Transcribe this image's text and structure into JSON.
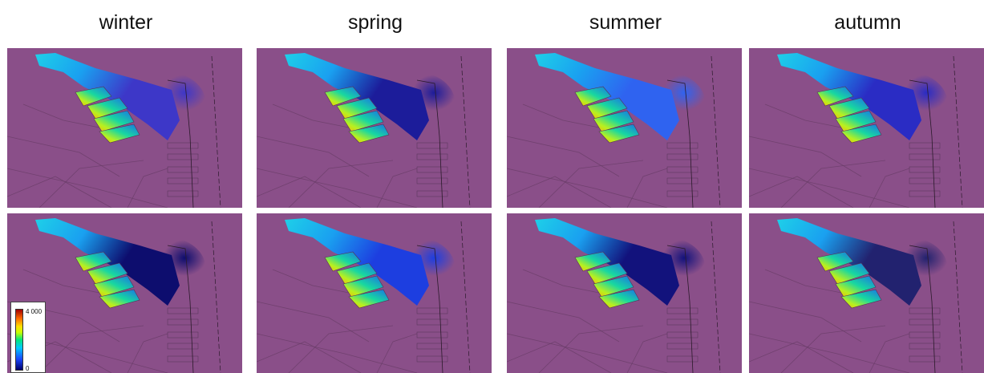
{
  "columns": [
    "winter",
    "spring",
    "summer",
    "autumn"
  ],
  "rows": 2,
  "legend": {
    "max_label": "4 000",
    "min_label": "0"
  },
  "colors": {
    "land": "#8a4f89",
    "scale": [
      "#00006a",
      "#1a48ff",
      "#00c8ff",
      "#00e87a",
      "#c8ff00",
      "#ffe000",
      "#ff6a00",
      "#a00000"
    ]
  }
}
